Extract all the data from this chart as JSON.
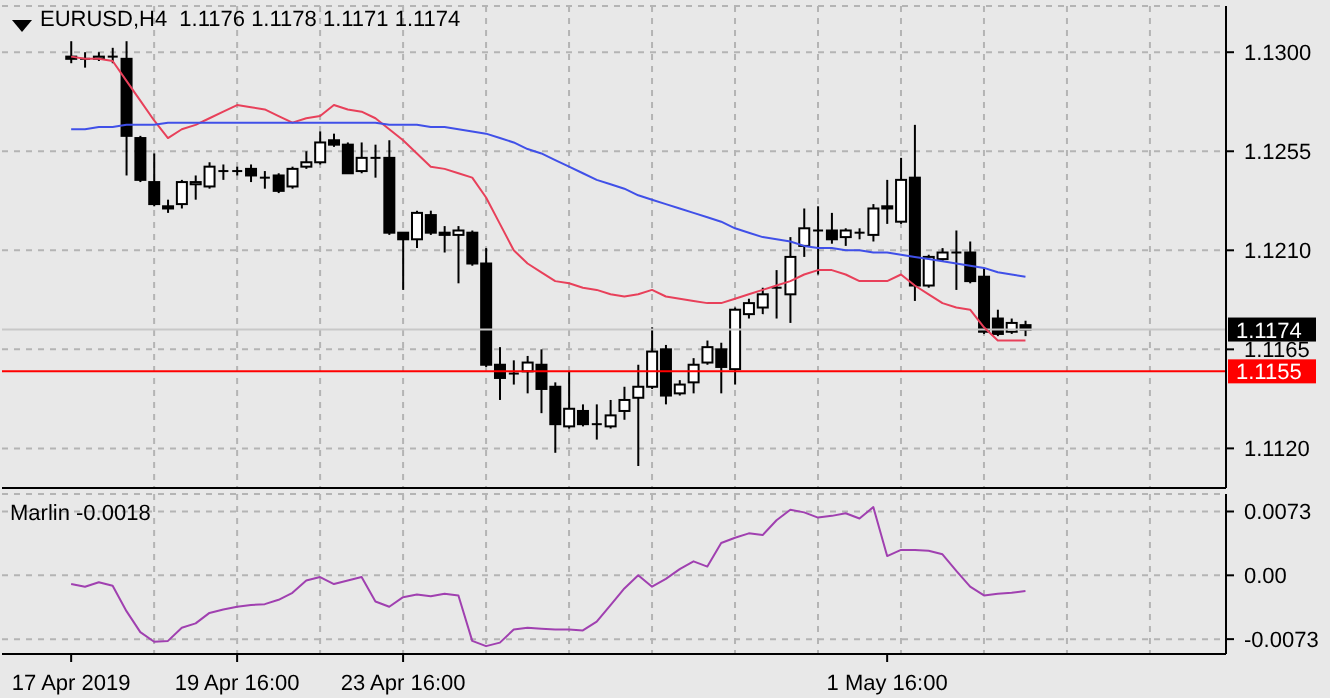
{
  "chart_data": [
    {
      "type": "candlestick",
      "title": "EURUSD,H4  1.1176 1.1178 1.1171 1.1174",
      "categories": [
        null,
        null,
        null,
        null,
        null,
        null,
        null,
        null,
        null,
        null,
        null,
        null,
        null,
        null,
        null,
        null,
        null,
        null,
        null,
        null,
        null,
        null,
        null,
        null,
        null,
        null,
        null,
        null,
        null,
        null,
        null,
        null,
        null,
        null,
        null,
        null,
        null,
        null,
        null,
        null,
        null,
        null,
        null,
        null,
        null,
        null,
        null,
        null,
        null,
        null,
        null,
        null,
        null,
        null,
        null,
        null,
        null,
        null,
        null,
        null,
        null,
        null,
        null,
        null,
        null,
        null,
        null,
        null,
        null,
        null
      ],
      "ohlc": [
        [
          1.1298,
          1.1305,
          1.1295,
          1.1297
        ],
        [
          1.1297,
          1.13,
          1.1293,
          1.1297
        ],
        [
          1.1297,
          1.13,
          1.1296,
          1.1298
        ],
        [
          1.1298,
          1.1302,
          1.1295,
          1.1298
        ],
        [
          1.1297,
          1.1305,
          1.1244,
          1.1262
        ],
        [
          1.1261,
          1.1262,
          1.1241,
          1.1242
        ],
        [
          1.1241,
          1.1254,
          1.123,
          1.1231
        ],
        [
          1.123,
          1.1233,
          1.1227,
          1.1229
        ],
        [
          1.1231,
          1.1242,
          1.1229,
          1.1241
        ],
        [
          1.124,
          1.1244,
          1.1233,
          1.1241
        ],
        [
          1.1239,
          1.125,
          1.1238,
          1.1248
        ],
        [
          1.1246,
          1.1249,
          1.1242,
          1.1246
        ],
        [
          1.1246,
          1.1248,
          1.1244,
          1.1246
        ],
        [
          1.1247,
          1.1249,
          1.1241,
          1.1244
        ],
        [
          1.1243,
          1.1246,
          1.1238,
          1.1243
        ],
        [
          1.1244,
          1.1245,
          1.1236,
          1.1237
        ],
        [
          1.1239,
          1.1248,
          1.1238,
          1.1247
        ],
        [
          1.1248,
          1.1255,
          1.1247,
          1.125
        ],
        [
          1.125,
          1.1264,
          1.1249,
          1.1259
        ],
        [
          1.126,
          1.1263,
          1.1257,
          1.1258
        ],
        [
          1.1258,
          1.1259,
          1.1245,
          1.1245
        ],
        [
          1.1246,
          1.1259,
          1.1245,
          1.1252
        ],
        [
          1.1252,
          1.1258,
          1.1243,
          1.1252
        ],
        [
          1.1252,
          1.126,
          1.1217,
          1.1218
        ],
        [
          1.1218,
          1.1218,
          1.1192,
          1.1215
        ],
        [
          1.1215,
          1.1228,
          1.1211,
          1.1227
        ],
        [
          1.1226,
          1.1228,
          1.1217,
          1.1218
        ],
        [
          1.1218,
          1.1221,
          1.1209,
          1.1217
        ],
        [
          1.1217,
          1.1221,
          1.1195,
          1.1219
        ],
        [
          1.1218,
          1.1219,
          1.1203,
          1.1204
        ],
        [
          1.1204,
          1.1211,
          1.1157,
          1.1158
        ],
        [
          1.1158,
          1.1166,
          1.1142,
          1.1152
        ],
        [
          1.1154,
          1.116,
          1.1149,
          1.1154
        ],
        [
          1.1155,
          1.1162,
          1.1145,
          1.1159
        ],
        [
          1.1158,
          1.1165,
          1.1136,
          1.1147
        ],
        [
          1.1148,
          1.115,
          1.1118,
          1.1131
        ],
        [
          1.113,
          1.1155,
          1.1129,
          1.1138
        ],
        [
          1.1137,
          1.114,
          1.113,
          1.1131
        ],
        [
          1.1131,
          1.114,
          1.1124,
          1.1131
        ],
        [
          1.113,
          1.1142,
          1.1129,
          1.1135
        ],
        [
          1.1137,
          1.1148,
          1.1133,
          1.1142
        ],
        [
          1.1143,
          1.1158,
          1.1112,
          1.1148
        ],
        [
          1.1148,
          1.1175,
          1.1147,
          1.1164
        ],
        [
          1.1165,
          1.1167,
          1.114,
          1.1144
        ],
        [
          1.1145,
          1.1151,
          1.1144,
          1.1149
        ],
        [
          1.115,
          1.1161,
          1.1145,
          1.1158
        ],
        [
          1.1159,
          1.1169,
          1.1158,
          1.1166
        ],
        [
          1.1165,
          1.1168,
          1.1145,
          1.1157
        ],
        [
          1.1156,
          1.1184,
          1.1149,
          1.1183
        ],
        [
          1.1181,
          1.1188,
          1.1179,
          1.1186
        ],
        [
          1.1184,
          1.1193,
          1.1181,
          1.119
        ],
        [
          1.1193,
          1.1201,
          1.1179,
          1.1193
        ],
        [
          1.119,
          1.1216,
          1.1177,
          1.1207
        ],
        [
          1.1212,
          1.1229,
          1.1207,
          1.122
        ],
        [
          1.1219,
          1.123,
          1.1199,
          1.1219
        ],
        [
          1.1219,
          1.1227,
          1.1213,
          1.1215
        ],
        [
          1.1216,
          1.122,
          1.1212,
          1.1219
        ],
        [
          1.1218,
          1.122,
          1.1215,
          1.1218
        ],
        [
          1.1217,
          1.1231,
          1.1214,
          1.1229
        ],
        [
          1.123,
          1.1242,
          1.1222,
          1.1229
        ],
        [
          1.1223,
          1.1252,
          1.1222,
          1.1242
        ],
        [
          1.1243,
          1.1267,
          1.1187,
          1.1194
        ],
        [
          1.1194,
          1.1208,
          1.1193,
          1.1207
        ],
        [
          1.1206,
          1.1211,
          1.1205,
          1.1209
        ],
        [
          1.1209,
          1.1219,
          1.1192,
          1.1209
        ],
        [
          1.1209,
          1.1214,
          1.1195,
          1.1196
        ],
        [
          1.1198,
          1.1202,
          1.1172,
          1.1173
        ],
        [
          1.1179,
          1.1183,
          1.1171,
          1.1172
        ],
        [
          1.1173,
          1.1179,
          1.1172,
          1.1177
        ],
        [
          1.1176,
          1.1178,
          1.1171,
          1.1174
        ]
      ],
      "series": [
        {
          "type": "line",
          "color": "#e8405a",
          "values": [
            1.1298,
            1.1297,
            1.1297,
            1.1296,
            1.1287,
            1.1278,
            1.1269,
            1.1261,
            1.1265,
            1.1267,
            1.127,
            1.1273,
            1.1276,
            1.1275,
            1.1274,
            1.1271,
            1.1268,
            1.127,
            1.1271,
            1.1276,
            1.1274,
            1.1273,
            1.127,
            1.1265,
            1.126,
            1.1254,
            1.1248,
            1.1247,
            1.1245,
            1.1243,
            1.1234,
            1.1222,
            1.121,
            1.1204,
            1.12,
            1.1196,
            1.1195,
            1.1193,
            1.1192,
            1.119,
            1.1189,
            1.119,
            1.1192,
            1.1189,
            1.1188,
            1.1187,
            1.1186,
            1.1186,
            1.1188,
            1.119,
            1.1192,
            1.1194,
            1.1196,
            1.1199,
            1.1201,
            1.1201,
            1.1199,
            1.1196,
            1.1196,
            1.1196,
            1.1199,
            1.1194,
            1.119,
            1.1186,
            1.1184,
            1.1183,
            1.1175,
            1.1169,
            1.1169,
            1.1169
          ]
        },
        {
          "type": "line",
          "color": "#4050e8",
          "values": [
            1.1265,
            1.1265,
            1.1266,
            1.1266,
            1.1267,
            1.1267,
            1.1267,
            1.1268,
            1.1268,
            1.1268,
            1.1268,
            1.1268,
            1.1268,
            1.1268,
            1.1268,
            1.1268,
            1.1268,
            1.1268,
            1.1268,
            1.1268,
            1.1268,
            1.1268,
            1.1268,
            1.1267,
            1.1267,
            1.1267,
            1.1266,
            1.1266,
            1.1265,
            1.1264,
            1.1263,
            1.1261,
            1.1259,
            1.1256,
            1.1254,
            1.1251,
            1.1248,
            1.1245,
            1.1242,
            1.124,
            1.1238,
            1.1235,
            1.1233,
            1.1231,
            1.1229,
            1.1227,
            1.1225,
            1.1223,
            1.122,
            1.1218,
            1.1216,
            1.1215,
            1.1214,
            1.1212,
            1.1211,
            1.1211,
            1.121,
            1.121,
            1.1209,
            1.1209,
            1.1208,
            1.1207,
            1.1206,
            1.1205,
            1.1204,
            1.1203,
            1.1202,
            1.12,
            1.1199,
            1.1198
          ]
        }
      ],
      "ylim": [
        1.1102,
        1.1321
      ],
      "yticks": [
        {
          "value": 1.112,
          "label": "1.1120"
        },
        {
          "value": 1.1165,
          "label": "1.1165"
        },
        {
          "value": 1.121,
          "label": "1.1210"
        },
        {
          "value": 1.1255,
          "label": "1.1255"
        },
        {
          "value": 1.13,
          "label": "1.1300"
        }
      ],
      "ref_lines": [
        {
          "axis": "y",
          "value": 1.1174,
          "label": "1.1174",
          "color": "#c8c8c8"
        },
        {
          "axis": "y",
          "value": 1.1155,
          "label": "1.1155",
          "color": "#ff0000"
        }
      ],
      "grid": true,
      "tick_labels": "y"
    },
    {
      "type": "line",
      "title": "Marlin -0.0018",
      "categories": [
        "17 Apr 2019",
        null,
        null,
        null,
        null,
        null,
        null,
        null,
        null,
        null,
        null,
        null,
        "19 Apr 16:00",
        null,
        null,
        null,
        null,
        null,
        null,
        null,
        null,
        null,
        null,
        null,
        "23 Apr 16:00",
        null,
        null,
        null,
        null,
        null,
        null,
        null,
        null,
        null,
        null,
        null,
        null,
        null,
        null,
        null,
        null,
        null,
        null,
        null,
        null,
        null,
        null,
        null,
        null,
        null,
        null,
        null,
        null,
        null,
        null,
        null,
        null,
        null,
        null,
        "1 May 16:00",
        null,
        null,
        null,
        null,
        null,
        null,
        null,
        null,
        null,
        null
      ],
      "series": [
        {
          "type": "line",
          "color": "#a040b0",
          "values": [
            -0.001,
            -0.0013,
            -0.0008,
            -0.0012,
            -0.0041,
            -0.0065,
            -0.0076,
            -0.0075,
            -0.006,
            -0.0055,
            -0.0043,
            -0.0039,
            -0.0036,
            -0.0034,
            -0.0033,
            -0.0028,
            -0.002,
            -0.0006,
            -0.0002,
            -0.001,
            -0.0006,
            -0.0002,
            -0.003,
            -0.0036,
            -0.0025,
            -0.0022,
            -0.0024,
            -0.0021,
            -0.0023,
            -0.0075,
            -0.0081,
            -0.0077,
            -0.0062,
            -0.006,
            -0.0061,
            -0.0062,
            -0.0062,
            -0.0063,
            -0.0053,
            -0.0034,
            -0.0015,
            0.0,
            -0.0013,
            -0.0004,
            0.0007,
            0.0016,
            0.001,
            0.0037,
            0.0043,
            0.0048,
            0.0046,
            0.0063,
            0.0075,
            0.0072,
            0.0066,
            0.0068,
            0.0071,
            0.0065,
            0.0078,
            0.0022,
            0.0029,
            0.0029,
            0.0028,
            0.0024,
            0.0005,
            -0.0013,
            -0.0023,
            -0.0021,
            -0.002,
            -0.0018
          ]
        }
      ],
      "ylim": [
        -0.009,
        0.0093
      ],
      "yticks": [
        {
          "value": -0.0073,
          "label": "-0.0073"
        },
        {
          "value": 0,
          "label": "0.00"
        },
        {
          "value": 0.0073,
          "label": "0.0073"
        }
      ],
      "grid": true
    }
  ]
}
